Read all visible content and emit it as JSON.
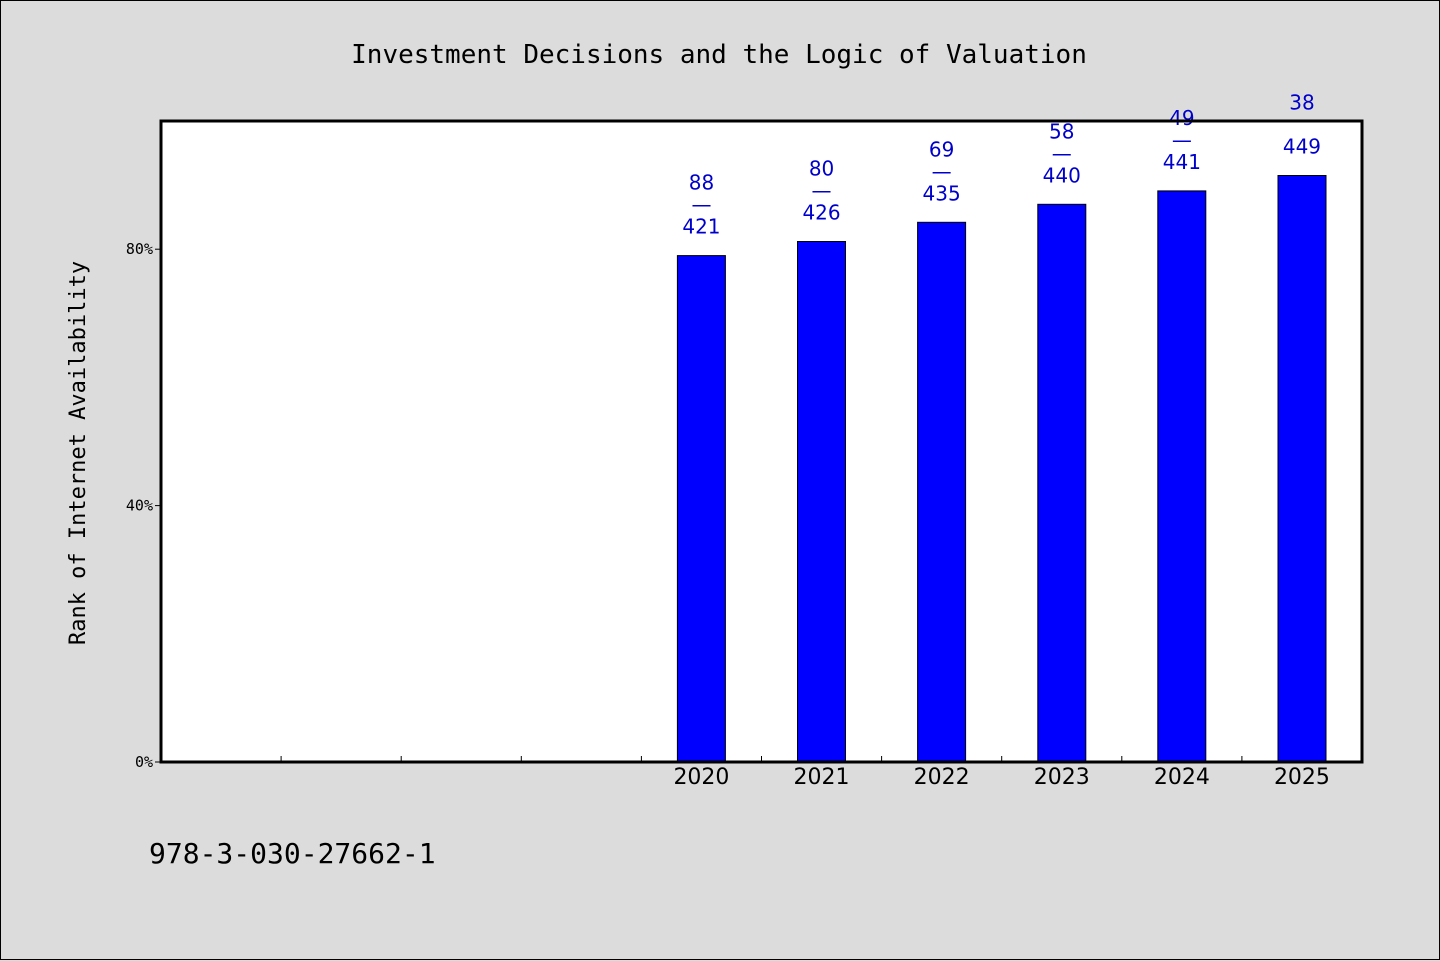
{
  "chart_data": {
    "type": "bar",
    "title": "Investment Decisions and the Logic of Valuation",
    "ylabel": "Rank of Internet Availability",
    "xlabel": "",
    "categories": [
      "2020",
      "2021",
      "2022",
      "2023",
      "2024",
      "2025"
    ],
    "slot_count": 10,
    "first_category_slot": 4,
    "values": [
      79,
      81.2,
      84.2,
      87,
      89.1,
      91.5
    ],
    "data_labels": [
      [
        "88",
        "—",
        "421"
      ],
      [
        "80",
        "—",
        "426"
      ],
      [
        "69",
        "—",
        "435"
      ],
      [
        "58",
        "—",
        "440"
      ],
      [
        "49",
        "—",
        "441"
      ],
      [
        "38",
        "",
        "449"
      ]
    ],
    "ylim": [
      0,
      100
    ],
    "yticks": [
      {
        "value": 0,
        "label": "0%"
      },
      {
        "value": 40,
        "label": "40%"
      },
      {
        "value": 80,
        "label": "80%"
      }
    ],
    "bar_color": "#0000ff",
    "label_color": "#0000cc",
    "grid": false,
    "legend": "none"
  },
  "footer": {
    "isbn": "978-3-030-27662-1"
  }
}
